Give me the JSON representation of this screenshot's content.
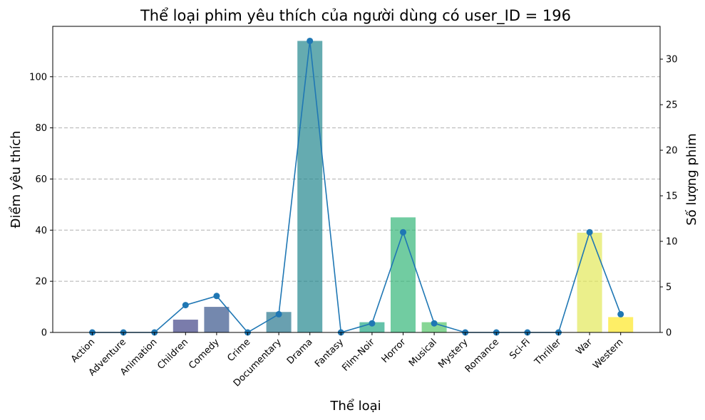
{
  "chart_data": {
    "type": "bar",
    "title": "Thể loại phim yêu thích của người dùng có user_ID = 196",
    "xlabel": "Thể loại",
    "ylabel": "Điểm yêu thích",
    "y2label": "Số lượng phim",
    "categories": [
      "Action",
      "Adventure",
      "Animation",
      "Children",
      "Comedy",
      "Crime",
      "Documentary",
      "Drama",
      "Fantasy",
      "Film-Noir",
      "Horror",
      "Musical",
      "Mystery",
      "Romance",
      "Sci-Fi",
      "Thriller",
      "War",
      "Western"
    ],
    "series": [
      {
        "type": "bar",
        "axis": "left",
        "values": [
          0,
          0,
          0,
          5,
          10,
          0,
          8,
          114,
          0,
          4,
          45,
          4,
          0,
          0,
          0,
          0,
          39,
          6
        ],
        "colors": [
          "#440154",
          "#481a6c",
          "#472f7d",
          "#414487",
          "#39568c",
          "#31688e",
          "#2a788e",
          "#23888e",
          "#1f988b",
          "#22a884",
          "#35b779",
          "#54c568",
          "#7ad151",
          "#a5db36",
          "#d2e21b",
          "#fde725",
          "#e3e85a",
          "#fde725"
        ]
      },
      {
        "type": "line",
        "axis": "right",
        "color": "#1f77b4",
        "values": [
          0,
          0,
          0,
          3,
          4,
          0,
          2,
          32,
          0,
          1,
          11,
          1,
          0,
          0,
          0,
          0,
          11,
          2
        ]
      }
    ],
    "ylim": [
      0,
      119.7
    ],
    "y2lim": [
      0,
      33.6
    ],
    "yticks": [
      0,
      20,
      40,
      60,
      80,
      100
    ],
    "y2ticks": [
      0,
      5,
      10,
      15,
      20,
      25,
      30
    ],
    "grid": "horizontal-dashed"
  }
}
